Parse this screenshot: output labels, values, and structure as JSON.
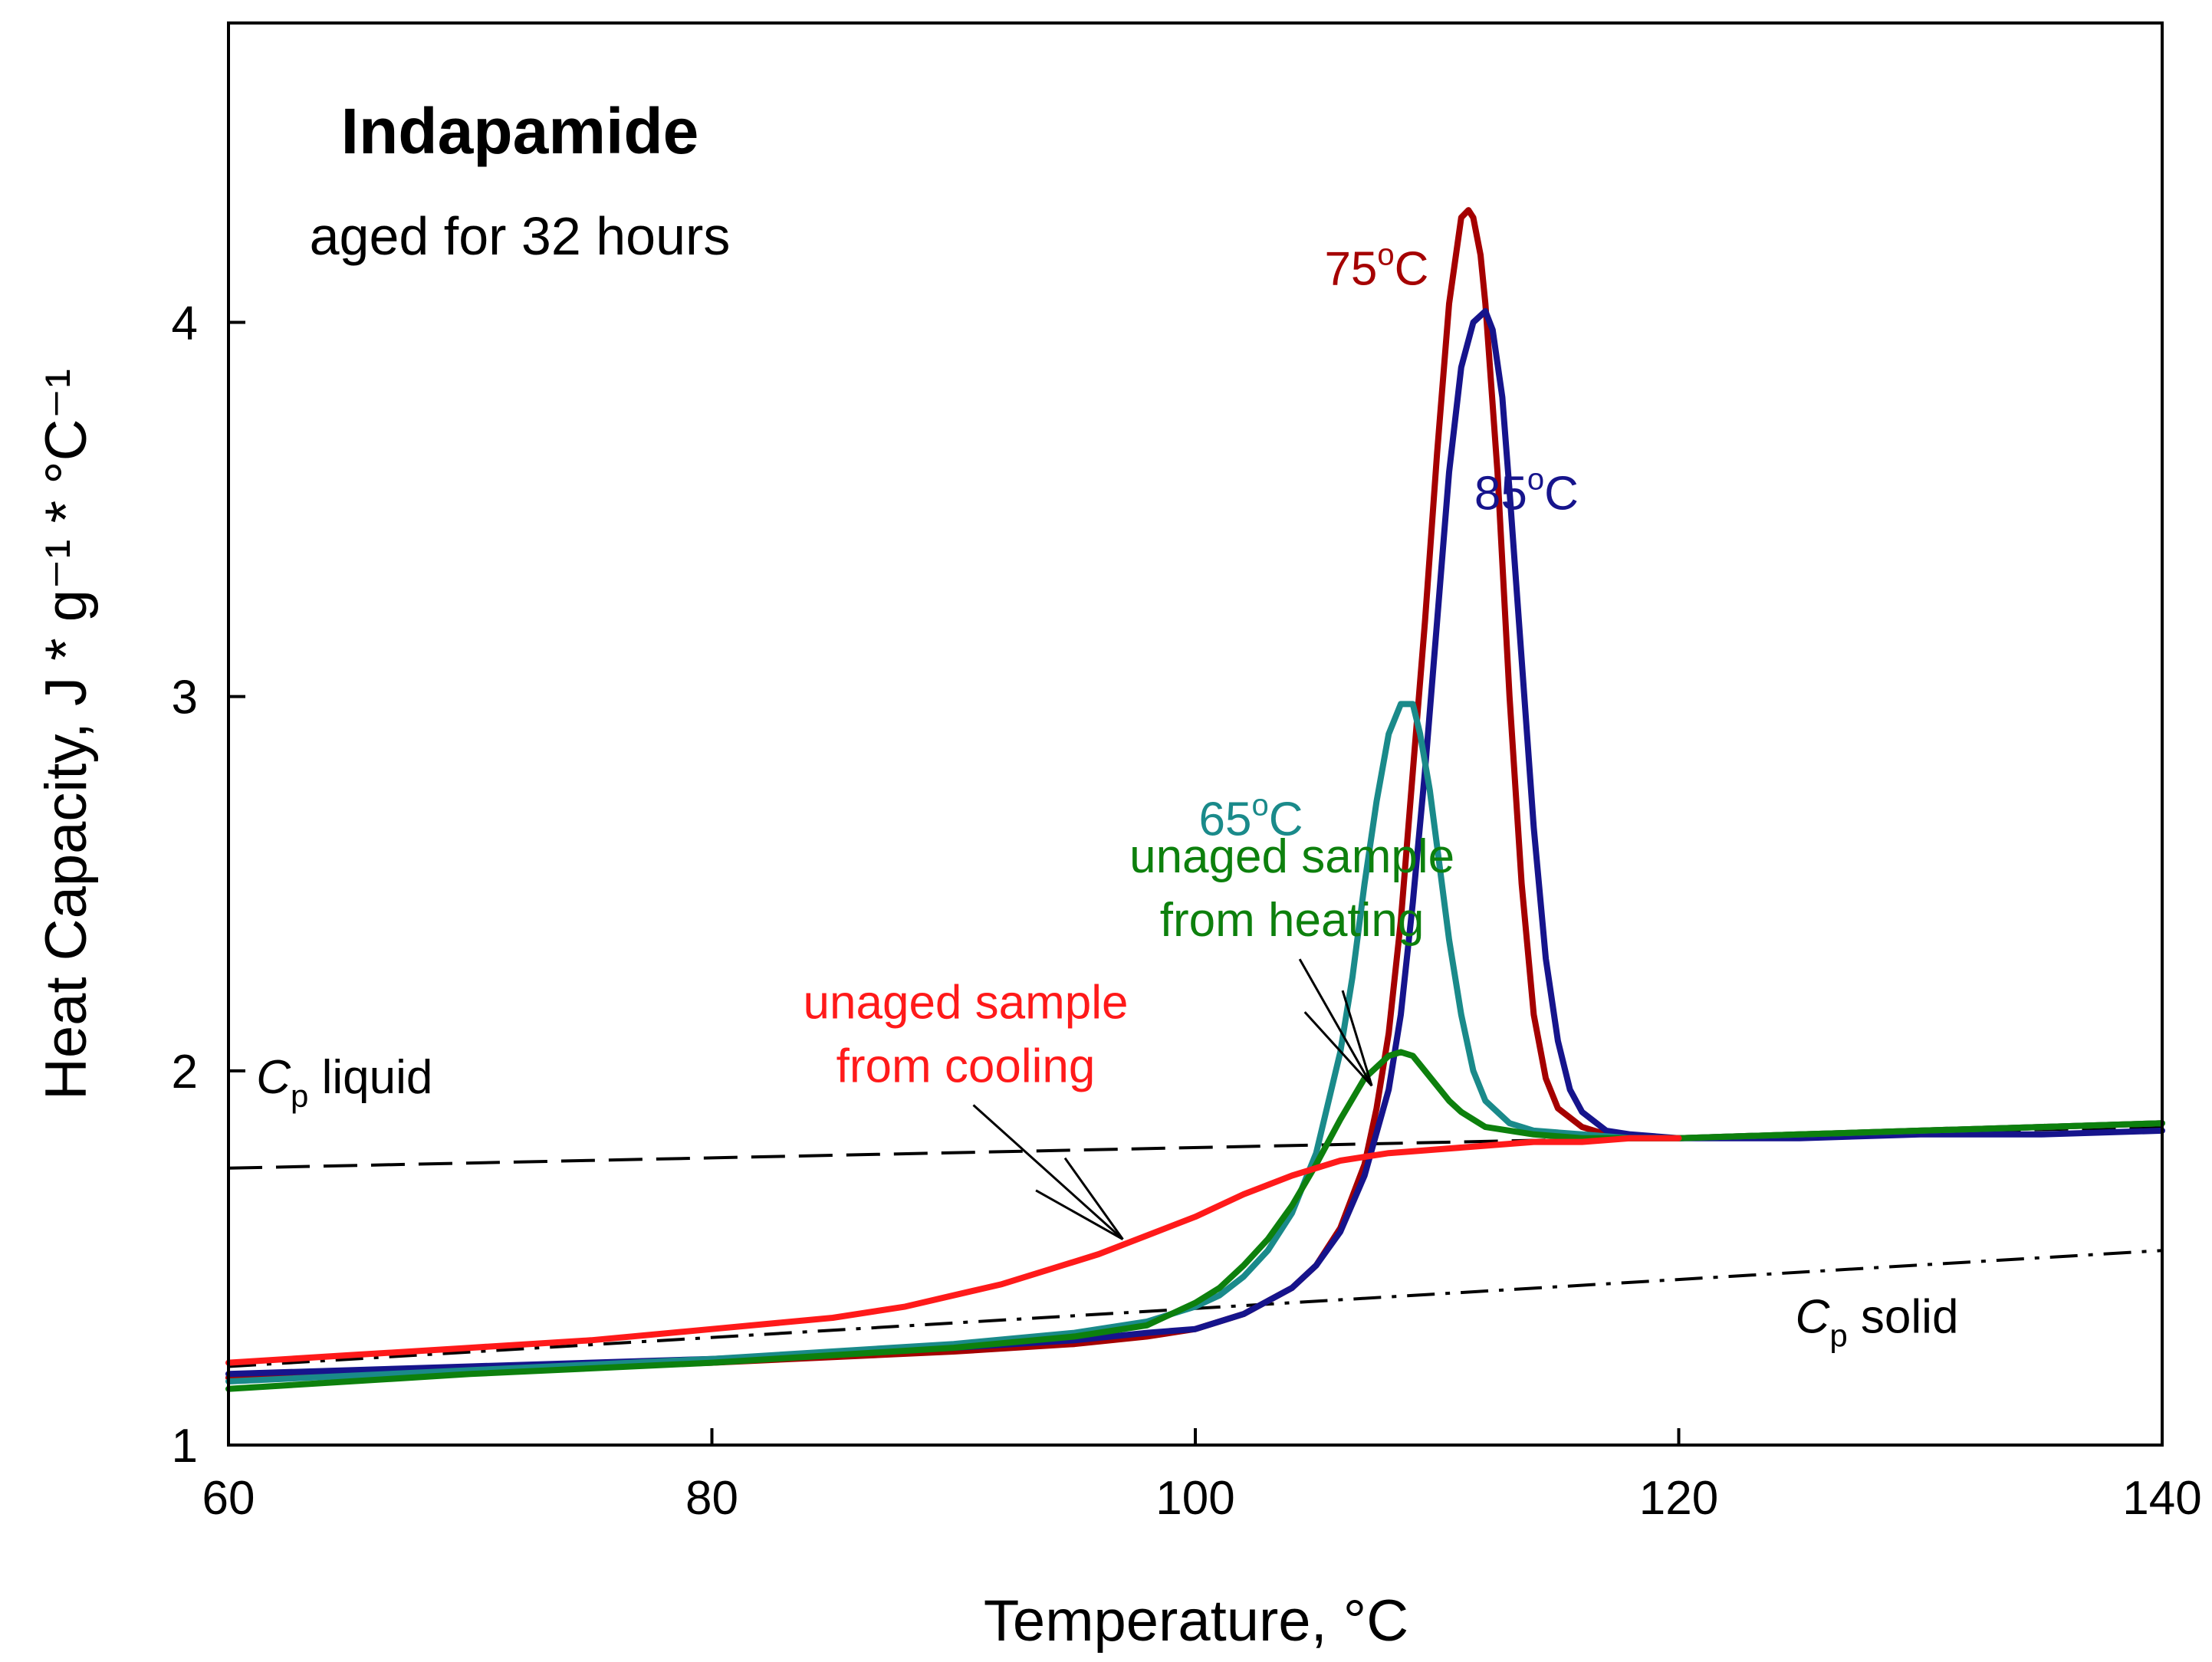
{
  "chart_data": {
    "type": "line",
    "title": "Indapamide",
    "subtitle": "aged for 32 hours",
    "xlabel": "Temperature, °C",
    "ylabel": "Heat Capacity, J * g⁻¹ * °C⁻¹",
    "xlim": [
      60,
      140
    ],
    "ylim": [
      1,
      4.8
    ],
    "xticks": [
      60,
      80,
      100,
      120,
      140
    ],
    "yticks": [
      1,
      2,
      3,
      4
    ],
    "grid": false,
    "series": [
      {
        "name": "75°C",
        "color": "#a50000",
        "x": [
          60,
          70,
          80,
          90,
          95,
          98,
          100,
          102,
          104,
          105,
          106,
          107,
          107.5,
          108,
          108.5,
          109,
          109.5,
          110,
          110.5,
          111,
          111.3,
          111.5,
          111.8,
          112,
          112.5,
          113,
          113.5,
          114,
          114.5,
          115,
          116,
          117,
          118,
          120,
          125,
          130,
          135,
          140
        ],
        "y": [
          1.18,
          1.2,
          1.22,
          1.25,
          1.27,
          1.29,
          1.31,
          1.35,
          1.42,
          1.48,
          1.58,
          1.75,
          1.9,
          2.1,
          2.4,
          2.8,
          3.2,
          3.65,
          4.05,
          4.28,
          4.3,
          4.28,
          4.18,
          4.05,
          3.6,
          3.0,
          2.5,
          2.15,
          1.98,
          1.9,
          1.85,
          1.83,
          1.82,
          1.82,
          1.83,
          1.84,
          1.85,
          1.86
        ]
      },
      {
        "name": "85°C",
        "color": "#16148c",
        "x": [
          60,
          70,
          80,
          90,
          95,
          98,
          100,
          102,
          104,
          105,
          106,
          107,
          108,
          108.5,
          109,
          109.5,
          110,
          110.5,
          111,
          111.5,
          112,
          112.3,
          112.7,
          113,
          113.5,
          114,
          114.5,
          115,
          115.5,
          116,
          117,
          118,
          120,
          125,
          130,
          135,
          140
        ],
        "y": [
          1.19,
          1.21,
          1.23,
          1.26,
          1.28,
          1.3,
          1.31,
          1.35,
          1.42,
          1.48,
          1.57,
          1.72,
          1.95,
          2.15,
          2.45,
          2.8,
          3.2,
          3.6,
          3.88,
          4.0,
          4.03,
          3.98,
          3.8,
          3.55,
          3.1,
          2.65,
          2.3,
          2.08,
          1.95,
          1.89,
          1.84,
          1.83,
          1.82,
          1.82,
          1.83,
          1.83,
          1.84
        ]
      },
      {
        "name": "65°C",
        "color": "#1a8a8a",
        "x": [
          60,
          70,
          80,
          90,
          95,
          98,
          100,
          101,
          102,
          103,
          104,
          105,
          106,
          106.5,
          107,
          107.5,
          108,
          108.5,
          109,
          109.3,
          109.7,
          110,
          110.5,
          111,
          111.5,
          112,
          113,
          114,
          116,
          118,
          120,
          125,
          130,
          135,
          140
        ],
        "y": [
          1.17,
          1.2,
          1.23,
          1.27,
          1.3,
          1.33,
          1.37,
          1.4,
          1.45,
          1.52,
          1.62,
          1.78,
          2.05,
          2.25,
          2.5,
          2.72,
          2.9,
          2.98,
          2.98,
          2.9,
          2.75,
          2.6,
          2.35,
          2.15,
          2.0,
          1.92,
          1.86,
          1.84,
          1.83,
          1.82,
          1.82,
          1.83,
          1.84,
          1.85,
          1.86
        ]
      },
      {
        "name": "unaged sample from heating",
        "color": "#0d800d",
        "x": [
          60,
          70,
          80,
          90,
          95,
          98,
          99,
          100,
          101,
          102,
          103,
          104,
          105,
          106,
          107,
          108,
          108.5,
          109,
          109.5,
          110,
          110.5,
          111,
          111.5,
          112,
          113,
          114,
          116,
          118,
          120,
          125,
          130,
          135,
          140
        ],
        "y": [
          1.15,
          1.19,
          1.22,
          1.26,
          1.29,
          1.32,
          1.35,
          1.38,
          1.42,
          1.48,
          1.55,
          1.64,
          1.75,
          1.87,
          1.98,
          2.04,
          2.05,
          2.04,
          2.0,
          1.96,
          1.92,
          1.89,
          1.87,
          1.85,
          1.84,
          1.83,
          1.82,
          1.82,
          1.82,
          1.83,
          1.84,
          1.85,
          1.86
        ]
      },
      {
        "name": "unaged sample from cooling",
        "color": "#ff1a1a",
        "x": [
          60,
          65,
          70,
          75,
          80,
          85,
          88,
          90,
          92,
          94,
          96,
          98,
          100,
          102,
          104,
          106,
          108,
          110,
          112,
          114,
          116,
          118,
          120
        ],
        "y": [
          1.22,
          1.24,
          1.26,
          1.28,
          1.31,
          1.34,
          1.37,
          1.4,
          1.43,
          1.47,
          1.51,
          1.56,
          1.61,
          1.67,
          1.72,
          1.76,
          1.78,
          1.79,
          1.8,
          1.81,
          1.81,
          1.82,
          1.82
        ]
      },
      {
        "name": "Cp liquid",
        "color": "#000000",
        "style": "dashed",
        "x": [
          60,
          140
        ],
        "y": [
          1.74,
          1.85
        ]
      },
      {
        "name": "Cp solid",
        "color": "#000000",
        "style": "dashdot",
        "x": [
          60,
          140
        ],
        "y": [
          1.21,
          1.52
        ]
      }
    ],
    "annotations": [
      {
        "key": "a75",
        "text": "75",
        "sup": "o",
        "rest": "C",
        "color": "#a50000",
        "x": 107.5,
        "y": 4.1,
        "arrow_to": null
      },
      {
        "key": "a85",
        "text": "85",
        "sup": "o",
        "rest": "C",
        "color": "#16148c",
        "x": 113.7,
        "y": 3.5,
        "arrow_to": null
      },
      {
        "key": "a65",
        "text": "65",
        "sup": "o",
        "rest": "C",
        "color": "#1a8a8a",
        "x": 102.3,
        "y": 2.63,
        "arrow_to": null
      },
      {
        "key": "aheat1",
        "text": "unaged sample",
        "color": "#0d800d",
        "x": 104.0,
        "y": 2.53,
        "arrow_to": null
      },
      {
        "key": "aheat2",
        "text": "from heating",
        "color": "#0d800d",
        "x": 104.0,
        "y": 2.36,
        "arrow_to": [
          107.3,
          1.96
        ]
      },
      {
        "key": "acool1",
        "text": "unaged sample",
        "color": "#ff1a1a",
        "x": 90.5,
        "y": 2.14,
        "arrow_to": null
      },
      {
        "key": "acool2",
        "text": "from cooling",
        "color": "#ff1a1a",
        "x": 90.5,
        "y": 1.97,
        "arrow_to": [
          97.0,
          1.55
        ]
      },
      {
        "key": "acpl",
        "text": "C",
        "sub": "p",
        "rest": " liquid",
        "color": "#000000",
        "x": 64.8,
        "y": 1.94,
        "arrow_to": null
      },
      {
        "key": "acps",
        "text": "C",
        "sub": "p",
        "rest": " solid",
        "color": "#000000",
        "x": 128.2,
        "y": 1.3,
        "arrow_to": null
      }
    ]
  }
}
